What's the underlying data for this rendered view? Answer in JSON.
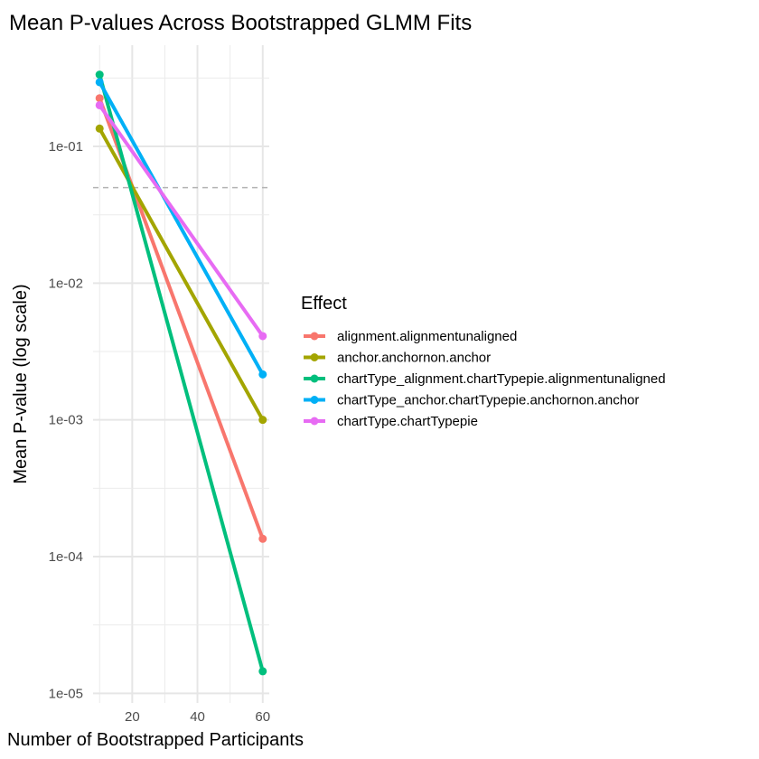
{
  "chart_data": {
    "type": "line",
    "title": "Mean P-values Across Bootstrapped GLMM Fits",
    "xlabel": "Number of Bootstrapped Participants",
    "ylabel": "Mean P-value (log scale)",
    "x_ticks": [
      20,
      40,
      60
    ],
    "y_ticks": [
      "1e-05",
      "1e-04",
      "1e-03",
      "1e-02",
      "1e-01"
    ],
    "y_tick_values": [
      1e-05,
      0.0001,
      0.001,
      0.01,
      0.1
    ],
    "xlim": [
      8,
      62
    ],
    "ylim": [
      8.5e-06,
      0.55
    ],
    "y_scale": "log",
    "grid": true,
    "reference_line": {
      "y": 0.05,
      "style": "dashed",
      "color": "#b3b3b3"
    },
    "legend": {
      "title": "Effect",
      "position": "right"
    },
    "series": [
      {
        "name": "alignment.alignmentunaligned",
        "color": "#F8766D",
        "x": [
          10,
          60
        ],
        "y": [
          0.225,
          0.000135
        ]
      },
      {
        "name": "anchor.anchornon.anchor",
        "color": "#A3A500",
        "x": [
          10,
          60
        ],
        "y": [
          0.135,
          0.001
        ]
      },
      {
        "name": "chartType_alignment.chartTypepie.alignmentunaligned",
        "color": "#00BF7D",
        "x": [
          10,
          60
        ],
        "y": [
          0.335,
          1.45e-05
        ]
      },
      {
        "name": "chartType_anchor.chartTypepie.anchornon.anchor",
        "color": "#00B0F6",
        "x": [
          10,
          60
        ],
        "y": [
          0.295,
          0.00215
        ]
      },
      {
        "name": "chartType.chartTypepie",
        "color": "#E76BF3",
        "x": [
          10,
          60
        ],
        "y": [
          0.2,
          0.0041
        ]
      }
    ]
  }
}
